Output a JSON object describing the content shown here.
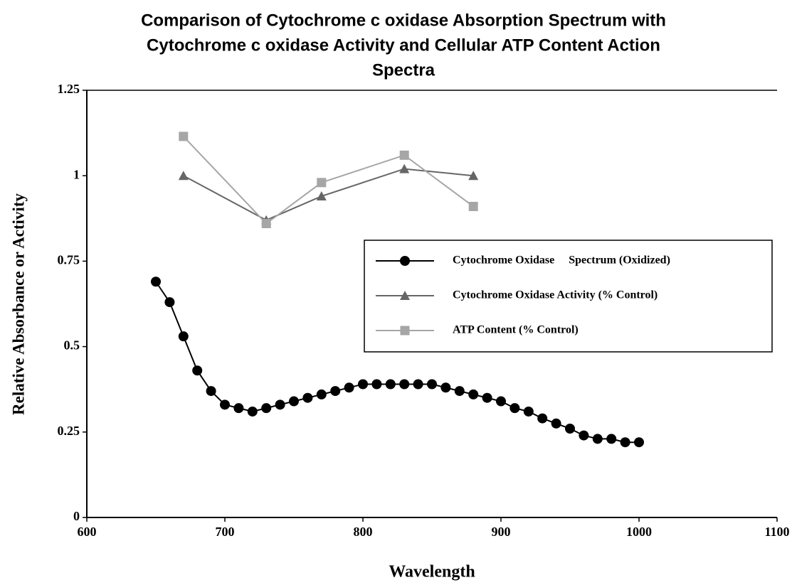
{
  "chart_data": {
    "type": "line",
    "title": [
      "Comparison of Cytochrome c oxidase Absorption Spectrum with",
      "Cytochrome c oxidase Activity and Cellular ATP Content Action",
      "Spectra"
    ],
    "x_label": "Wavelength",
    "y_label": "Relative Absorbance or Activity",
    "xlim": [
      600,
      1100
    ],
    "xticks": [
      600,
      700,
      800,
      900,
      1000,
      1100
    ],
    "ylim": [
      0,
      1.25
    ],
    "yticks": [
      0,
      0.25,
      0.5,
      0.75,
      1,
      1.25
    ],
    "grid": false,
    "legend": "right",
    "series": [
      {
        "name": "Cytochrome Oxidase     Spectrum (Oxidized)",
        "color": "#000000",
        "marker": "circle",
        "x": [
          650,
          660,
          670,
          680,
          690,
          700,
          710,
          720,
          730,
          740,
          750,
          760,
          770,
          780,
          790,
          800,
          810,
          820,
          830,
          840,
          850,
          860,
          870,
          880,
          890,
          900,
          910,
          920,
          930,
          940,
          950,
          960,
          970,
          980,
          990,
          1000
        ],
        "values": [
          0.69,
          0.63,
          0.53,
          0.43,
          0.37,
          0.33,
          0.32,
          0.31,
          0.32,
          0.33,
          0.34,
          0.35,
          0.36,
          0.37,
          0.38,
          0.39,
          0.39,
          0.39,
          0.39,
          0.39,
          0.39,
          0.38,
          0.37,
          0.36,
          0.35,
          0.34,
          0.32,
          0.31,
          0.29,
          0.275,
          0.26,
          0.24,
          0.23,
          0.23,
          0.22,
          0.22
        ]
      },
      {
        "name": "Cytochrome Oxidase Activity (% Control)",
        "color": "#666666",
        "marker": "triangle",
        "x": [
          670,
          730,
          770,
          830,
          880
        ],
        "values": [
          1.0,
          0.87,
          0.94,
          1.02,
          1.0
        ]
      },
      {
        "name": "ATP Content (% Control)",
        "color": "#a6a6a6",
        "marker": "square",
        "x": [
          670,
          730,
          770,
          830,
          880
        ],
        "values": [
          1.115,
          0.86,
          0.98,
          1.06,
          0.91
        ]
      }
    ]
  }
}
